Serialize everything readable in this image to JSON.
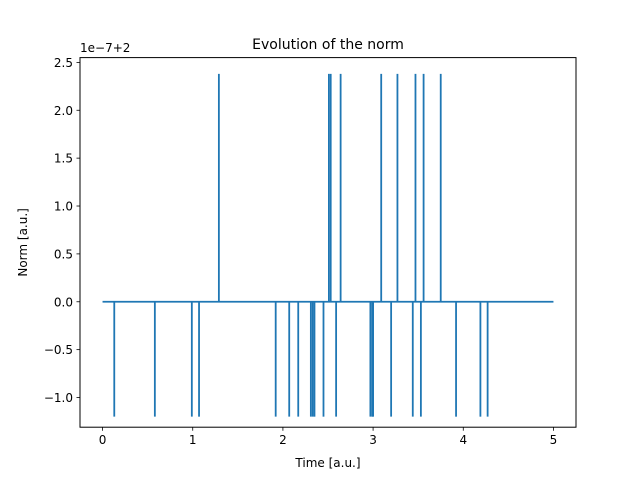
{
  "chart_data": {
    "type": "line",
    "title": "Evolution of the norm",
    "xlabel": "Time [a.u.]",
    "ylabel": "Norm [a.u.]",
    "y_offset_label": "1e−7+2",
    "xlim": [
      -0.25,
      5.25
    ],
    "ylim": [
      -1.31,
      2.55
    ],
    "xticks": [
      0,
      1,
      2,
      3,
      4,
      5
    ],
    "xtick_labels": [
      "0",
      "1",
      "2",
      "3",
      "4",
      "5"
    ],
    "yticks": [
      -1.0,
      -0.5,
      0.0,
      0.5,
      1.0,
      1.5,
      2.0,
      2.5
    ],
    "ytick_labels": [
      "−1.0",
      "−0.5",
      "0.0",
      "0.5",
      "1.0",
      "1.5",
      "2.0",
      "2.5"
    ],
    "grid": false,
    "color": "#1f77b4",
    "series": [
      {
        "x_range": [
          0,
          5
        ],
        "baseline": 0.0,
        "spikes": [
          {
            "x": 0.13,
            "y": -1.2
          },
          {
            "x": 0.58,
            "y": -1.2
          },
          {
            "x": 0.99,
            "y": -1.2
          },
          {
            "x": 1.07,
            "y": -1.2
          },
          {
            "x": 1.29,
            "y": 2.38
          },
          {
            "x": 1.92,
            "y": -1.2
          },
          {
            "x": 2.07,
            "y": -1.2
          },
          {
            "x": 2.17,
            "y": -1.2
          },
          {
            "x": 2.31,
            "y": -1.2
          },
          {
            "x": 2.33,
            "y": -1.2
          },
          {
            "x": 2.35,
            "y": -1.2
          },
          {
            "x": 2.45,
            "y": -1.2
          },
          {
            "x": 2.51,
            "y": 2.38
          },
          {
            "x": 2.53,
            "y": 2.38
          },
          {
            "x": 2.59,
            "y": -1.2
          },
          {
            "x": 2.64,
            "y": 2.38
          },
          {
            "x": 2.97,
            "y": -1.2
          },
          {
            "x": 2.99,
            "y": -1.2
          },
          {
            "x": 3.0,
            "y": -1.2
          },
          {
            "x": 3.09,
            "y": 2.38
          },
          {
            "x": 3.2,
            "y": -1.2
          },
          {
            "x": 3.27,
            "y": 2.38
          },
          {
            "x": 3.44,
            "y": -1.2
          },
          {
            "x": 3.47,
            "y": 2.38
          },
          {
            "x": 3.53,
            "y": -1.2
          },
          {
            "x": 3.56,
            "y": 2.38
          },
          {
            "x": 3.75,
            "y": 2.38
          },
          {
            "x": 3.92,
            "y": -1.2
          },
          {
            "x": 4.19,
            "y": -1.2
          },
          {
            "x": 4.27,
            "y": -1.2
          }
        ]
      }
    ]
  }
}
